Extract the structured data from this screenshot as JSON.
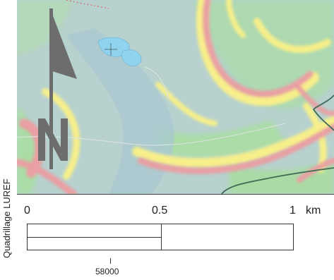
{
  "map": {
    "grid_label": "Quadrillage LUREF",
    "x_tick_label": "58000",
    "north_arrow_letter": "N",
    "colors": {
      "base": "#b9d3d0",
      "green": "#a3e39a",
      "yellow": "#f6ef8a",
      "pink": "#eaa2a4",
      "water": "#8fd3ee",
      "boundary": "#3e6b55",
      "arrow": "#6d6d6d"
    }
  },
  "scale_bar": {
    "label_start": "0",
    "label_mid": "0.5",
    "label_end": "1",
    "unit": "km"
  }
}
